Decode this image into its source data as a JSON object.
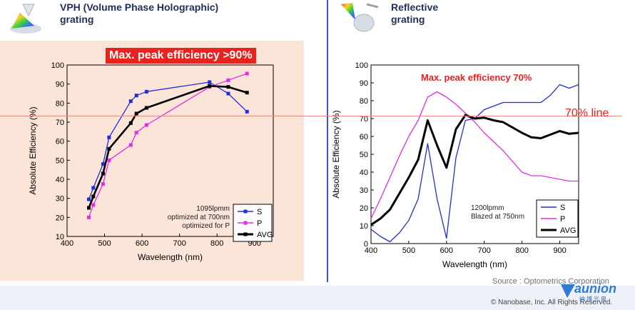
{
  "header": {
    "left_title_line1": "VPH (Volume Phase Holographic)",
    "left_title_line2": "grating",
    "right_title_line1": "Reflective",
    "right_title_line2": "grating"
  },
  "annotations": {
    "left_highlight": "Max. peak efficiency >90%",
    "right_highlight": "Max. peak efficiency 70%",
    "line_label": "70% line",
    "left_note": [
      "1095lpmm",
      "optimized at 700nm",
      "optimized for P"
    ],
    "right_note": [
      "1200lpmm",
      "Blazed at 750nm"
    ]
  },
  "footer": {
    "source": "Source : Optometrics Corporation",
    "copyright": "© Nanobase, Inc. All Rights Reserved.",
    "logo_text": "aunion",
    "logo_subtext": "纳博光电"
  },
  "colors": {
    "S": "#1f2fd6",
    "P": "#e52ce5",
    "AVG": "#000000",
    "highlight_red": "#e8231f",
    "left_panel_bg": "#fbe4d8",
    "divider_blue": "#3a57c9",
    "line70": "#e98a86"
  },
  "chart_data": [
    {
      "type": "line",
      "xlabel": "Wavelength  (nm)",
      "ylabel": "Absolute  Efficiency (%)",
      "xlim": [
        400,
        950
      ],
      "ylim": [
        10,
        100
      ],
      "xticks": [
        400,
        500,
        600,
        700,
        800,
        900
      ],
      "yticks": [
        10,
        20,
        30,
        40,
        50,
        60,
        70,
        80,
        90,
        100
      ],
      "grid": false,
      "legend_position": "bottom-right",
      "markers": true,
      "series": [
        {
          "name": "S",
          "x": [
            458,
            470,
            496,
            512,
            570,
            585,
            612,
            780,
            830,
            880
          ],
          "y": [
            29.5,
            35.5,
            48,
            62,
            81,
            84,
            86,
            91,
            85,
            75.5
          ]
        },
        {
          "name": "P",
          "x": [
            458,
            470,
            496,
            512,
            570,
            585,
            612,
            780,
            830,
            880
          ],
          "y": [
            20,
            26.5,
            37.5,
            50,
            58,
            64.5,
            68.5,
            88.5,
            92,
            95.5
          ]
        },
        {
          "name": "AVG",
          "x": [
            458,
            470,
            496,
            512,
            570,
            585,
            612,
            780,
            830,
            880
          ],
          "y": [
            25,
            31,
            43,
            56,
            69.5,
            74.5,
            77.5,
            89,
            88.5,
            85.5
          ]
        }
      ]
    },
    {
      "type": "line",
      "xlabel": "Wavelength  (nm)",
      "ylabel": "Absolute Efficiency (%)",
      "xlim": [
        400,
        950
      ],
      "ylim": [
        0,
        100
      ],
      "xticks": [
        400,
        500,
        600,
        700,
        800,
        900
      ],
      "yticks": [
        0,
        10,
        20,
        30,
        40,
        50,
        60,
        70,
        80,
        90,
        100
      ],
      "grid": false,
      "legend_position": "bottom-right",
      "markers": false,
      "series": [
        {
          "name": "S",
          "x": [
            400,
            425,
            450,
            475,
            500,
            525,
            550,
            575,
            600,
            625,
            650,
            675,
            700,
            725,
            750,
            775,
            800,
            825,
            850,
            875,
            900,
            925,
            950
          ],
          "y": [
            8,
            4,
            1,
            6,
            13,
            25,
            56,
            25,
            3,
            48,
            69,
            70,
            75,
            77,
            79,
            79,
            79,
            79,
            79,
            83,
            89,
            87,
            89
          ]
        },
        {
          "name": "P",
          "x": [
            400,
            425,
            450,
            475,
            500,
            525,
            550,
            575,
            600,
            625,
            650,
            675,
            700,
            725,
            750,
            775,
            800,
            825,
            850,
            875,
            900,
            925,
            950
          ],
          "y": [
            14,
            25,
            37,
            49,
            60,
            69,
            82,
            85,
            82,
            78,
            73,
            68,
            62,
            57,
            52,
            46,
            40,
            38,
            38,
            37,
            36,
            35,
            35
          ]
        },
        {
          "name": "AVG",
          "x": [
            400,
            425,
            450,
            475,
            500,
            525,
            550,
            575,
            600,
            625,
            650,
            675,
            700,
            725,
            750,
            775,
            800,
            825,
            850,
            875,
            900,
            925,
            950
          ],
          "y": [
            10.5,
            14,
            19,
            28,
            37,
            47,
            69,
            55,
            42.5,
            64,
            72,
            70,
            70.5,
            69,
            68,
            65,
            62,
            59.5,
            59,
            61,
            63,
            61.5,
            62
          ]
        }
      ]
    }
  ]
}
